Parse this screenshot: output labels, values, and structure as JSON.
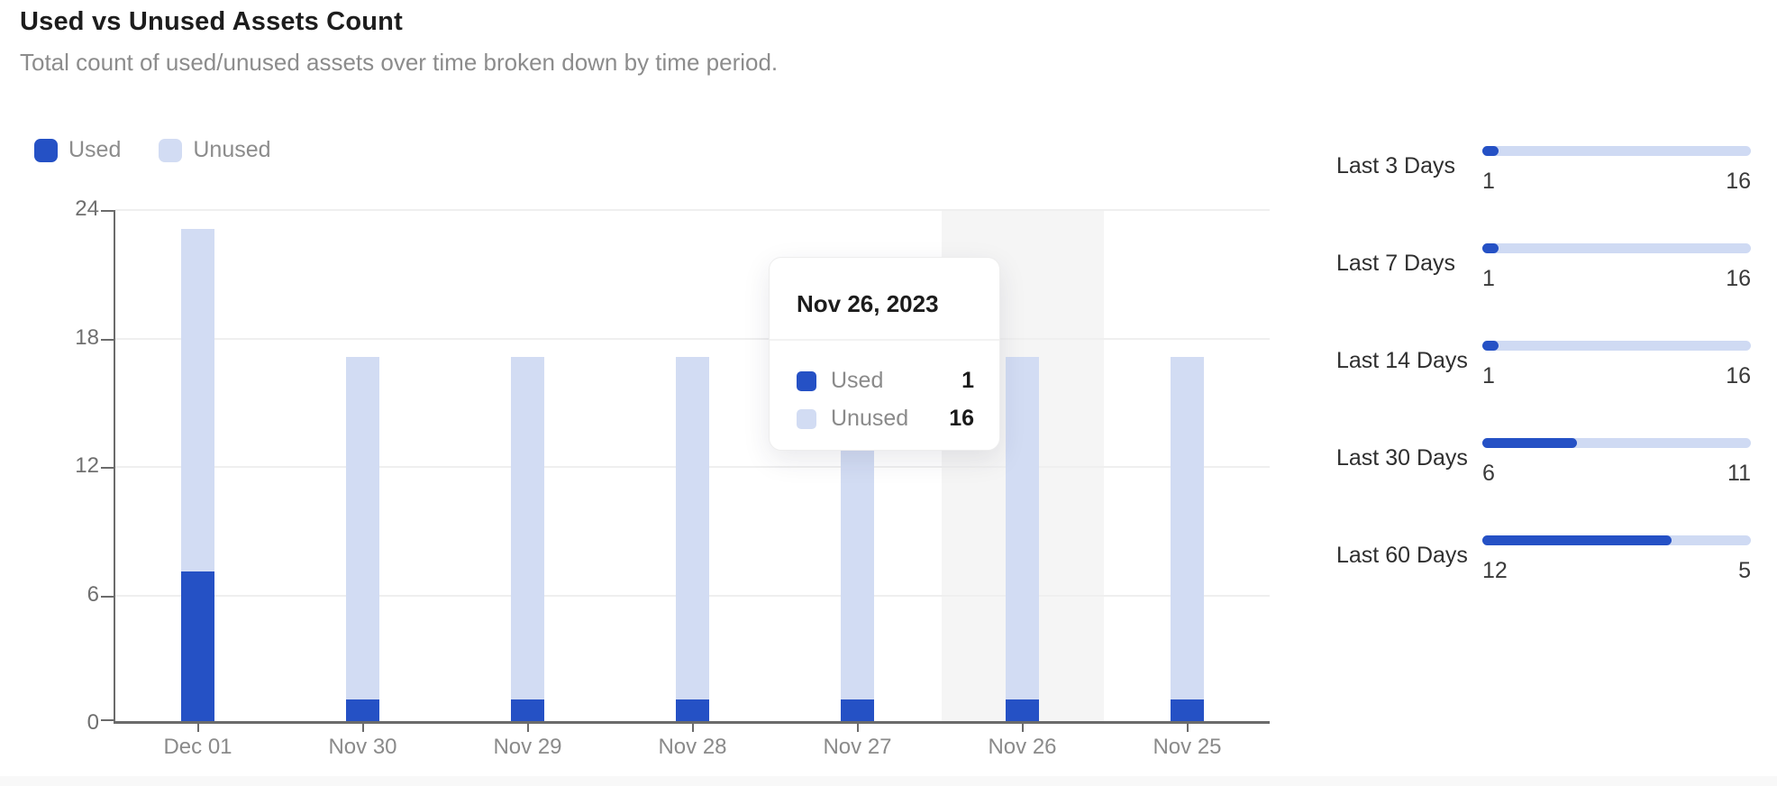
{
  "header": {
    "title": "Used vs Unused Assets Count",
    "subtitle": "Total count of used/unused assets over time broken down by time period."
  },
  "colors": {
    "used": "#2551c5",
    "unused": "#d2dcf3",
    "track": "#cfdaf3",
    "hover_band": "#f5f5f5",
    "grid": "#efefef",
    "axis": "#6b6b6b"
  },
  "legend": [
    {
      "label": "Used",
      "color": "#2551c5"
    },
    {
      "label": "Unused",
      "color": "#d2dcf3"
    }
  ],
  "chart_data": {
    "type": "bar",
    "stacked": true,
    "title": "Used vs Unused Assets Count",
    "categories": [
      "Dec 01",
      "Nov 30",
      "Nov 29",
      "Nov 28",
      "Nov 27",
      "Nov 26",
      "Nov 25"
    ],
    "series": [
      {
        "name": "Used",
        "color": "#2551c5",
        "values": [
          7,
          1,
          1,
          1,
          1,
          1,
          1
        ]
      },
      {
        "name": "Unused",
        "color": "#d2dcf3",
        "values": [
          16,
          16,
          16,
          16,
          16,
          16,
          16
        ]
      }
    ],
    "ylim": [
      0,
      24
    ],
    "yticks": [
      24,
      18,
      12,
      6,
      0
    ],
    "grid": true,
    "legend_position": "top-left",
    "highlighted_category": "Nov 26"
  },
  "tooltip": {
    "title": "Nov 26, 2023",
    "rows": [
      {
        "label": "Used",
        "value": "1",
        "color": "#2551c5"
      },
      {
        "label": "Unused",
        "value": "16",
        "color": "#d2dcf3"
      }
    ]
  },
  "side_panel": {
    "rows": [
      {
        "label": "Last 3 Days",
        "used": "1",
        "unused": "16"
      },
      {
        "label": "Last 7 Days",
        "used": "1",
        "unused": "16"
      },
      {
        "label": "Last 14 Days",
        "used": "1",
        "unused": "16"
      },
      {
        "label": "Last 30 Days",
        "used": "6",
        "unused": "11"
      },
      {
        "label": "Last 60 Days",
        "used": "12",
        "unused": "5"
      }
    ]
  }
}
